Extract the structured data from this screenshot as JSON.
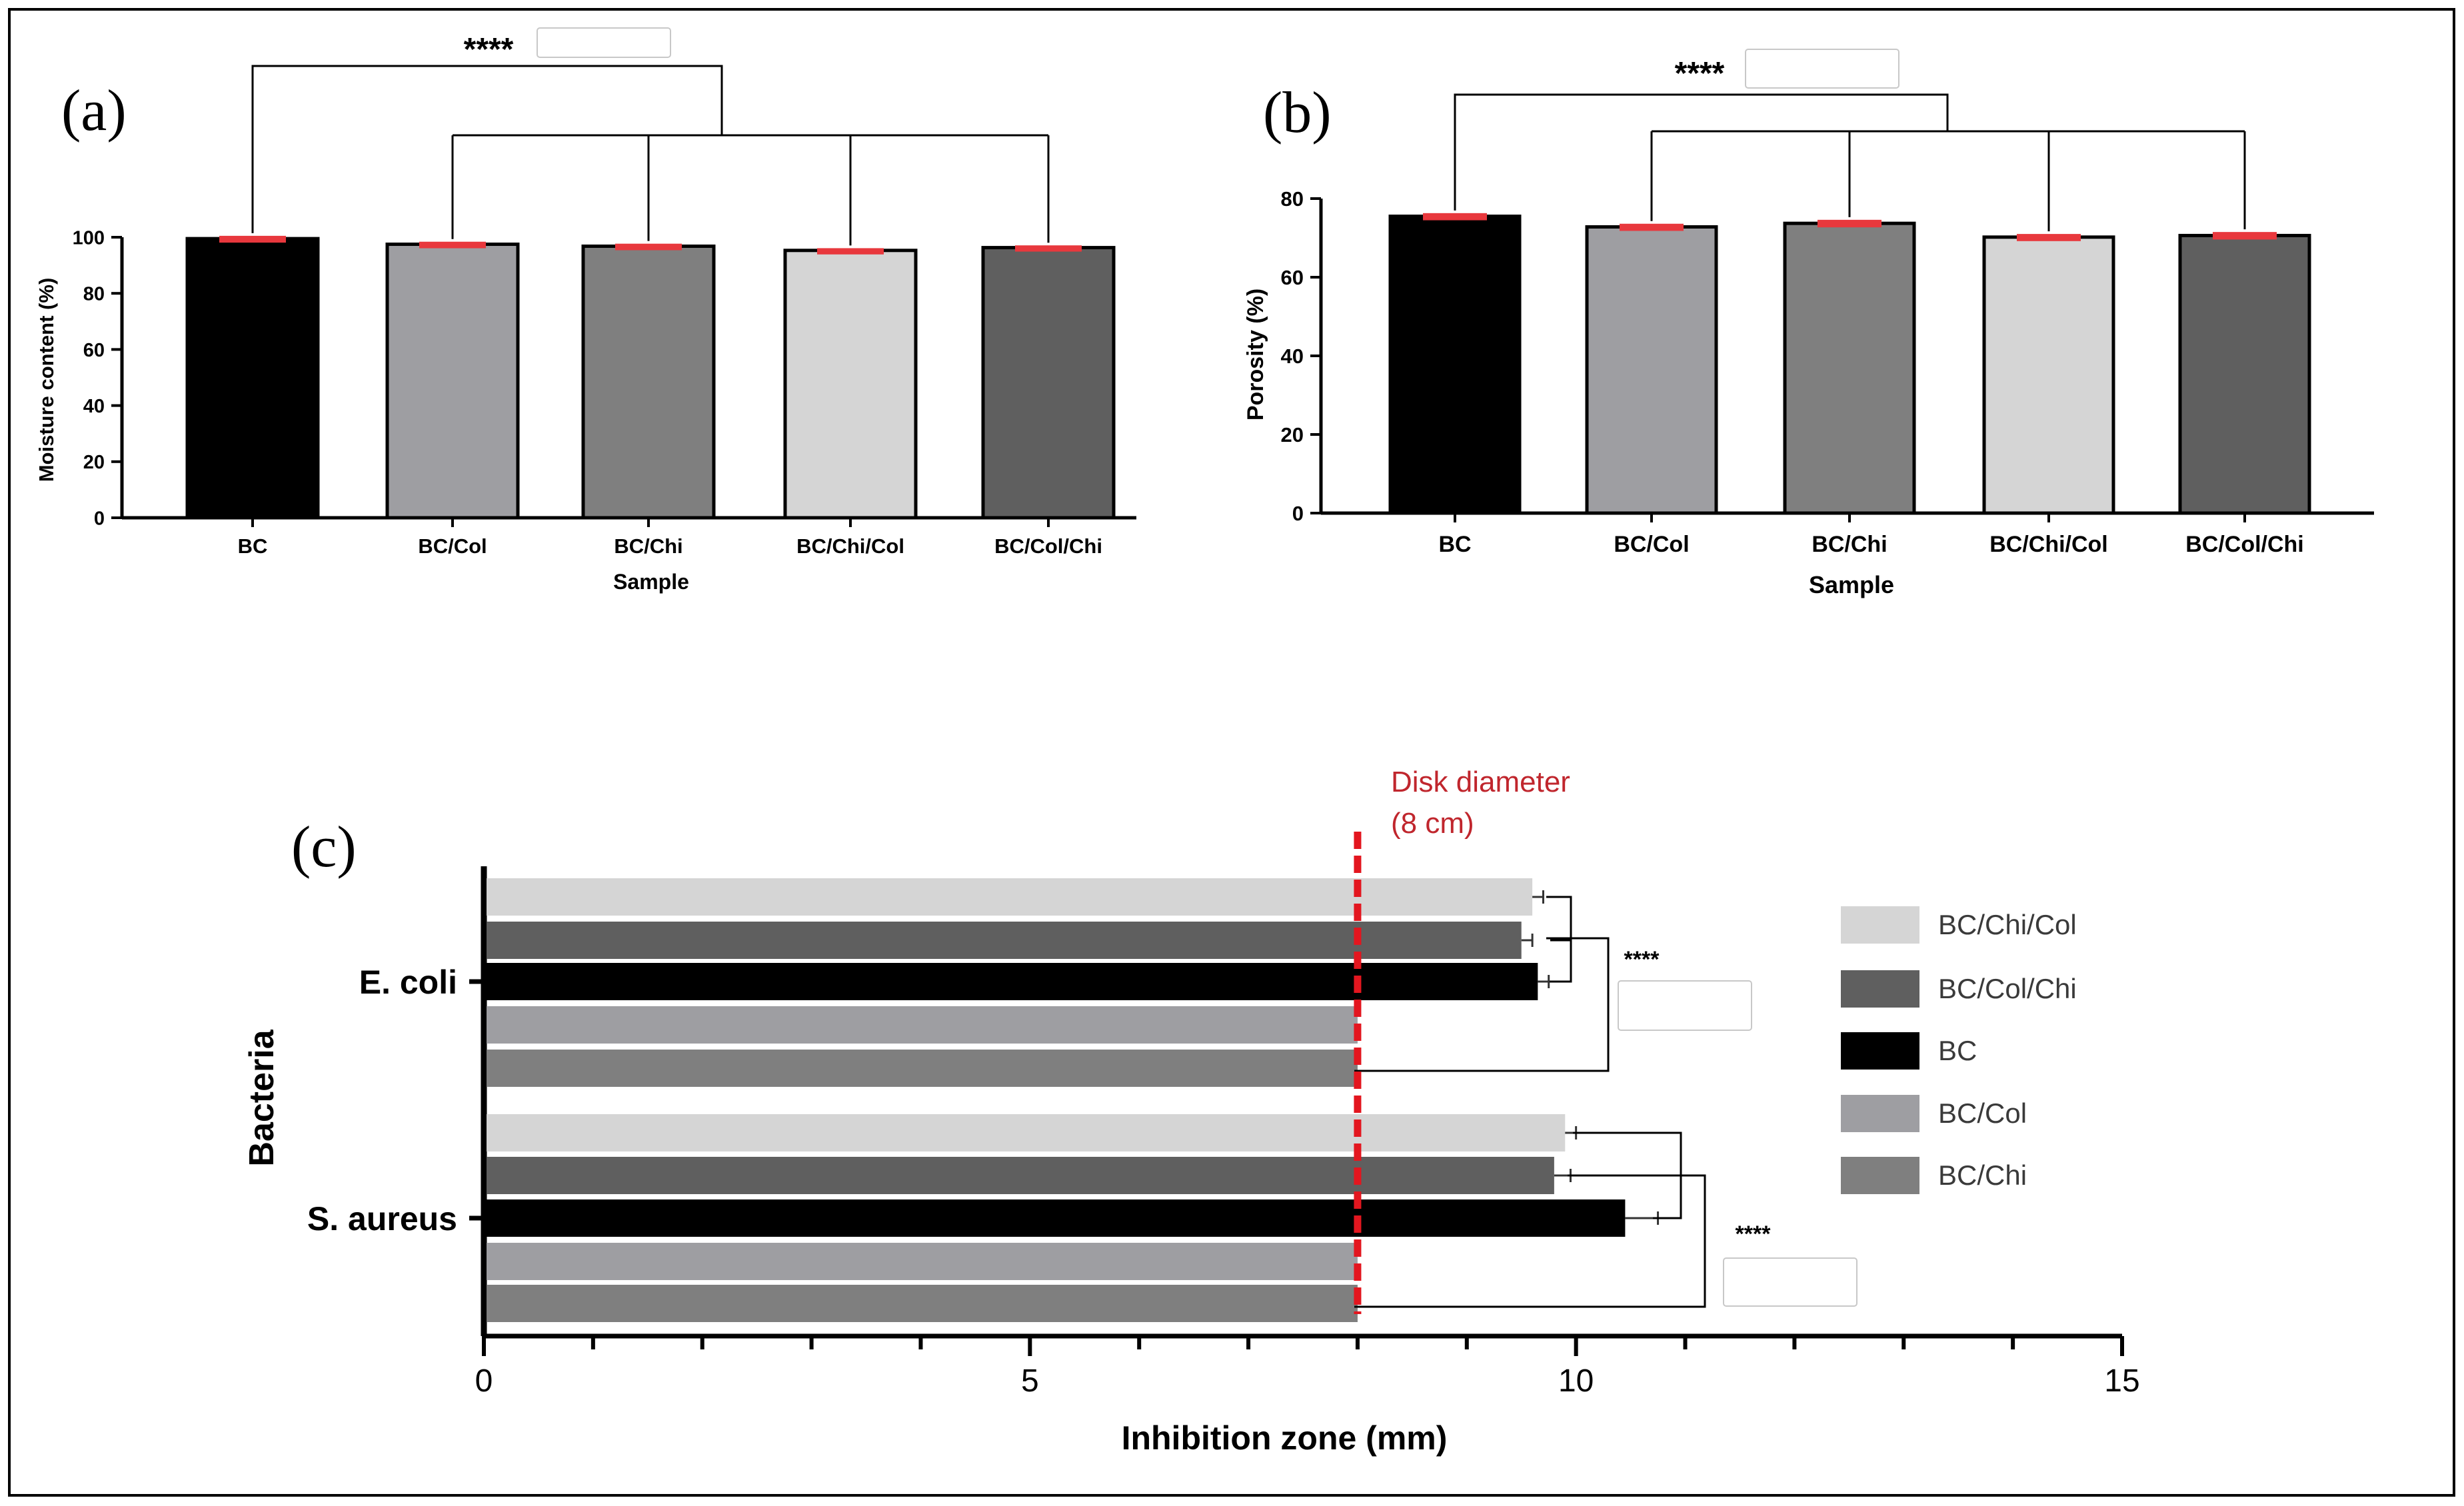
{
  "colors": {
    "black": "#000000",
    "bc_col": "#9e9ea2",
    "bc_chi": "#7f7f7f",
    "bc_chi_col": "#d5d5d5",
    "bc_col_chi": "#5f5f5f",
    "error_bar_red": "#e8383d",
    "disk_line_red": "#e3161f",
    "disk_label_red": "#c0262d"
  },
  "chart_data": [
    {
      "type": "bar",
      "panel_label": "(a)",
      "title": "",
      "xlabel": "Sample",
      "ylabel": "Moisture content (%)",
      "categories": [
        "BC",
        "BC/Col",
        "BC/Chi",
        "BC/Chi/Col",
        "BC/Col/Chi"
      ],
      "values": [
        99.5,
        97.5,
        96.8,
        95.3,
        96.3
      ],
      "errors": [
        1.0,
        0.9,
        0.9,
        0.8,
        0.8
      ],
      "ylim": [
        0,
        100
      ],
      "yticks": [
        "0",
        "20",
        "40",
        "60",
        "80",
        "100"
      ],
      "significance": "****"
    },
    {
      "type": "bar",
      "panel_label": "(b)",
      "title": "",
      "xlabel": "Sample",
      "ylabel": "Porosity (%)",
      "categories": [
        "BC",
        "BC/Col",
        "BC/Chi",
        "BC/Chi/Col",
        "BC/Col/Chi"
      ],
      "values": [
        75.5,
        72.8,
        73.7,
        70.2,
        70.6
      ],
      "errors": [
        0.8,
        0.8,
        0.9,
        0.8,
        0.9
      ],
      "ylim": [
        0,
        80
      ],
      "yticks": [
        "0",
        "20",
        "40",
        "60",
        "80"
      ],
      "significance": "****"
    },
    {
      "type": "bar",
      "orientation": "horizontal",
      "panel_label": "(c)",
      "title": "",
      "xlabel": "Inhibition zone (mm)",
      "ylabel": "Bacteria",
      "categories": [
        "E. coli",
        "S. aureus"
      ],
      "xlim": [
        0,
        15
      ],
      "xticks": [
        "0",
        "5",
        "10",
        "15"
      ],
      "series": [
        {
          "name": "BC/Chi/Col",
          "values": [
            9.6,
            9.9
          ],
          "errors": [
            0.1,
            0.1
          ]
        },
        {
          "name": "BC/Col/Chi",
          "values": [
            9.5,
            9.8
          ],
          "errors": [
            0.1,
            0.15
          ]
        },
        {
          "name": "BC",
          "values": [
            9.65,
            10.45
          ],
          "errors": [
            0.1,
            0.3
          ]
        },
        {
          "name": "BC/Col",
          "values": [
            8.0,
            8.0
          ],
          "errors": [
            0,
            0
          ]
        },
        {
          "name": "BC/Chi",
          "values": [
            8.0,
            8.0
          ],
          "errors": [
            0,
            0
          ]
        }
      ],
      "reference_line": {
        "value": 8,
        "label_line1": "Disk diameter",
        "label_line2": "(8 cm)"
      },
      "significance": [
        "****",
        "****"
      ]
    }
  ]
}
